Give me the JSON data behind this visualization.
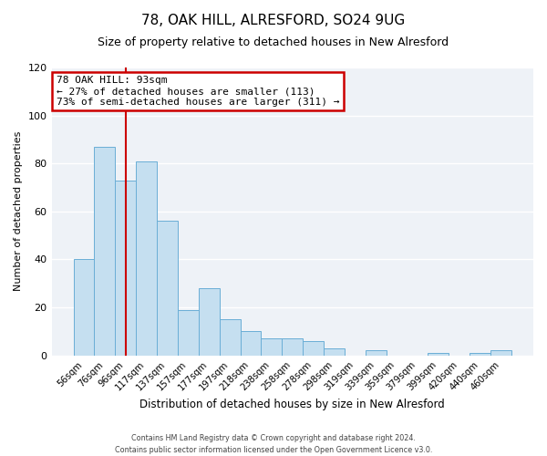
{
  "title": "78, OAK HILL, ALRESFORD, SO24 9UG",
  "subtitle": "Size of property relative to detached houses in New Alresford",
  "xlabel": "Distribution of detached houses by size in New Alresford",
  "ylabel": "Number of detached properties",
  "bar_labels": [
    "56sqm",
    "76sqm",
    "96sqm",
    "117sqm",
    "137sqm",
    "157sqm",
    "177sqm",
    "197sqm",
    "218sqm",
    "238sqm",
    "258sqm",
    "278sqm",
    "298sqm",
    "319sqm",
    "339sqm",
    "359sqm",
    "379sqm",
    "399sqm",
    "420sqm",
    "440sqm",
    "460sqm"
  ],
  "bar_values": [
    40,
    87,
    73,
    81,
    56,
    19,
    28,
    15,
    10,
    7,
    7,
    6,
    3,
    0,
    2,
    0,
    0,
    1,
    0,
    1,
    2
  ],
  "bar_color": "#c5dff0",
  "bar_edgecolor": "#6aaed6",
  "vline_x": 2.0,
  "vline_color": "#cc0000",
  "annotation_title": "78 OAK HILL: 93sqm",
  "annotation_line1": "← 27% of detached houses are smaller (113)",
  "annotation_line2": "73% of semi-detached houses are larger (311) →",
  "annotation_box_color": "#cc0000",
  "ylim": [
    0,
    120
  ],
  "yticks": [
    0,
    20,
    40,
    60,
    80,
    100,
    120
  ],
  "footer1": "Contains HM Land Registry data © Crown copyright and database right 2024.",
  "footer2": "Contains public sector information licensed under the Open Government Licence v3.0.",
  "bg_color": "#eef2f7"
}
